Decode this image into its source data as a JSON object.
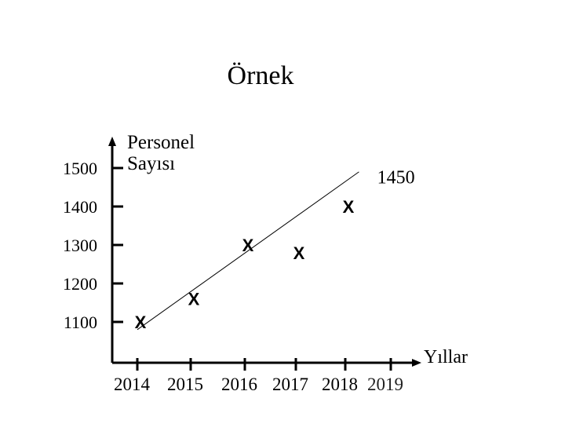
{
  "chart_data": {
    "type": "scatter",
    "title": "Örnek",
    "ylabel_lines": [
      "Personel",
      "Sayısı"
    ],
    "xlabel": "Yıllar",
    "x_ticks": [
      "2014",
      "2015",
      "2016",
      "2017",
      "2018",
      "2019"
    ],
    "y_ticks": [
      "1500",
      "1400",
      "1300",
      "1200",
      "1100"
    ],
    "marker": "X",
    "points": [
      {
        "x": 2014,
        "y": 1100
      },
      {
        "x": 2015,
        "y": 1160
      },
      {
        "x": 2016,
        "y": 1300
      },
      {
        "x": 2017,
        "y": 1280
      },
      {
        "x": 2018,
        "y": 1400
      }
    ],
    "trendline": {
      "from": {
        "x": 2014,
        "y": 1080
      },
      "to": {
        "x": 2018.3,
        "y": 1490
      }
    },
    "annotations": [
      {
        "text": "1450",
        "x": 2018.7,
        "y": 1460
      }
    ],
    "colors": {
      "axis": "#000000",
      "text": "#000000",
      "last_tick": "#222222"
    }
  }
}
